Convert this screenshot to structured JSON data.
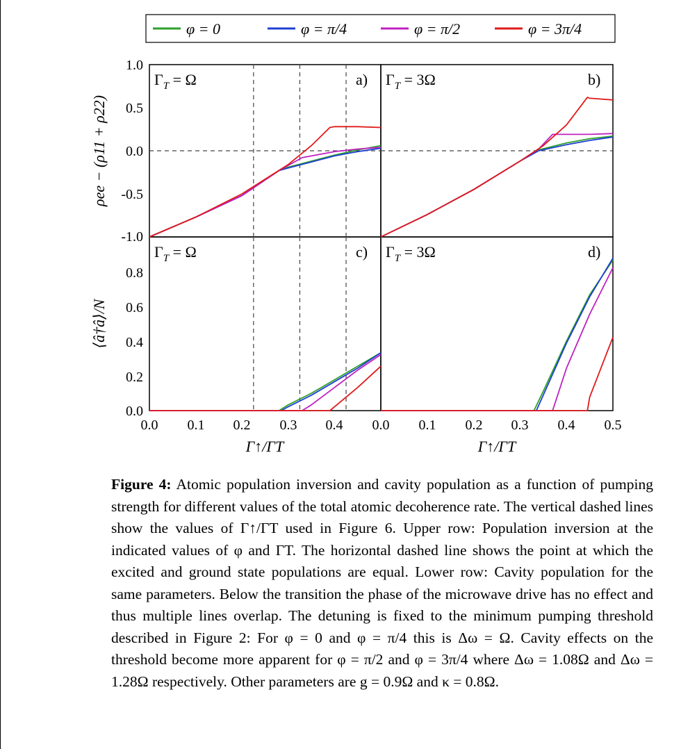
{
  "legend": {
    "entries": [
      "φ = 0",
      "φ = π/4",
      "φ = π/2",
      "φ = 3π/4"
    ]
  },
  "panels": [
    {
      "id": "a",
      "label": "a)",
      "condition": "Γ",
      "condition_sub": "T",
      "condition_rhs": " = Ω"
    },
    {
      "id": "b",
      "label": "b)",
      "condition": "Γ",
      "condition_sub": "T",
      "condition_rhs": " = 3Ω"
    },
    {
      "id": "c",
      "label": "c)",
      "condition": "Γ",
      "condition_sub": "T",
      "condition_rhs": " = Ω"
    },
    {
      "id": "d",
      "label": "d)",
      "condition": "Γ",
      "condition_sub": "T",
      "condition_rhs": " = 3Ω"
    }
  ],
  "axes": {
    "top_ylabel": "ρee − (ρ11 + ρ22)",
    "bottom_ylabel": "⟨â†â⟩/N",
    "xlabel": "Γ↑/ΓT",
    "top_yticks": [
      "1.0",
      "0.5",
      "0.0",
      "-0.5",
      "-1.0"
    ],
    "bottom_yticks": [
      "0.8",
      "0.6",
      "0.4",
      "0.2",
      "0.0"
    ],
    "xticks_left": [
      "0.0",
      "0.1",
      "0.2",
      "0.3",
      "0.4",
      "0.0"
    ],
    "xticks_right": [
      "0.1",
      "0.2",
      "0.3",
      "0.4",
      "0.5"
    ]
  },
  "chart_data": [
    {
      "type": "line",
      "panel": "a",
      "xlim": [
        0,
        0.5
      ],
      "ylim": [
        -1.0,
        1.0
      ],
      "hlines": [
        0.0
      ],
      "vlines": [
        0.225,
        0.325,
        0.425
      ],
      "series": [
        {
          "name": "φ = 0",
          "color": "#2ca02c",
          "x": [
            0,
            0.1,
            0.2,
            0.28,
            0.3,
            0.35,
            0.4,
            0.45,
            0.5
          ],
          "y": [
            -1.0,
            -0.77,
            -0.52,
            -0.23,
            -0.19,
            -0.12,
            -0.05,
            0.01,
            0.06
          ]
        },
        {
          "name": "φ = π/4",
          "color": "#1f3fd0",
          "x": [
            0,
            0.1,
            0.2,
            0.28,
            0.3,
            0.35,
            0.4,
            0.45,
            0.5
          ],
          "y": [
            -1.0,
            -0.77,
            -0.52,
            -0.23,
            -0.2,
            -0.13,
            -0.06,
            -0.01,
            0.03
          ]
        },
        {
          "name": "φ = π/2",
          "color": "#c020c0",
          "x": [
            0,
            0.1,
            0.2,
            0.28,
            0.3,
            0.33,
            0.4,
            0.45,
            0.5
          ],
          "y": [
            -1.0,
            -0.77,
            -0.52,
            -0.23,
            -0.17,
            -0.08,
            -0.01,
            0.02,
            0.04
          ]
        },
        {
          "name": "φ = 3π/4",
          "color": "#e01a1a",
          "x": [
            0,
            0.1,
            0.2,
            0.3,
            0.35,
            0.39,
            0.4,
            0.45,
            0.5
          ],
          "y": [
            -1.0,
            -0.77,
            -0.5,
            -0.16,
            0.06,
            0.27,
            0.28,
            0.28,
            0.27
          ]
        }
      ]
    },
    {
      "type": "line",
      "panel": "b",
      "xlim": [
        0,
        0.5
      ],
      "ylim": [
        -1.0,
        1.0
      ],
      "hlines": [
        0.0
      ],
      "series": [
        {
          "name": "φ = 0",
          "color": "#2ca02c",
          "x": [
            0,
            0.1,
            0.2,
            0.3,
            0.34,
            0.4,
            0.45,
            0.5
          ],
          "y": [
            -1.0,
            -0.74,
            -0.45,
            -0.12,
            0.01,
            0.09,
            0.14,
            0.17
          ]
        },
        {
          "name": "φ = π/4",
          "color": "#1f3fd0",
          "x": [
            0,
            0.1,
            0.2,
            0.3,
            0.34,
            0.4,
            0.45,
            0.5
          ],
          "y": [
            -1.0,
            -0.74,
            -0.45,
            -0.12,
            0.0,
            0.07,
            0.12,
            0.16
          ]
        },
        {
          "name": "φ = π/2",
          "color": "#c020c0",
          "x": [
            0,
            0.1,
            0.2,
            0.3,
            0.34,
            0.37,
            0.4,
            0.45,
            0.5
          ],
          "y": [
            -1.0,
            -0.74,
            -0.45,
            -0.12,
            0.02,
            0.19,
            0.19,
            0.19,
            0.2
          ]
        },
        {
          "name": "φ = 3π/4",
          "color": "#e01a1a",
          "x": [
            0,
            0.1,
            0.2,
            0.3,
            0.35,
            0.4,
            0.445,
            0.45,
            0.5
          ],
          "y": [
            -1.0,
            -0.74,
            -0.45,
            -0.12,
            0.06,
            0.3,
            0.62,
            0.61,
            0.59
          ]
        }
      ]
    },
    {
      "type": "line",
      "panel": "c",
      "xlim": [
        0,
        0.5
      ],
      "ylim": [
        0,
        0.9
      ],
      "vlines": [
        0.225,
        0.325,
        0.425
      ],
      "series": [
        {
          "name": "φ = 0",
          "color": "#2ca02c",
          "x": [
            0,
            0.28,
            0.3,
            0.35,
            0.4,
            0.45,
            0.5
          ],
          "y": [
            0,
            0,
            0.03,
            0.09,
            0.16,
            0.23,
            0.3
          ]
        },
        {
          "name": "φ = π/4",
          "color": "#1f3fd0",
          "x": [
            0,
            0.285,
            0.3,
            0.35,
            0.4,
            0.45,
            0.5
          ],
          "y": [
            0,
            0,
            0.02,
            0.08,
            0.15,
            0.22,
            0.3
          ]
        },
        {
          "name": "φ = π/2",
          "color": "#c020c0",
          "x": [
            0,
            0.33,
            0.35,
            0.4,
            0.45,
            0.5
          ],
          "y": [
            0,
            0,
            0.03,
            0.12,
            0.21,
            0.29
          ]
        },
        {
          "name": "φ = 3π/4",
          "color": "#e01a1a",
          "x": [
            0,
            0.39,
            0.4,
            0.45,
            0.5
          ],
          "y": [
            0,
            0,
            0.02,
            0.12,
            0.23
          ]
        }
      ]
    },
    {
      "type": "line",
      "panel": "d",
      "xlim": [
        0,
        0.5
      ],
      "ylim": [
        0,
        0.9
      ],
      "series": [
        {
          "name": "φ = 0",
          "color": "#2ca02c",
          "x": [
            0,
            0.33,
            0.35,
            0.4,
            0.45,
            0.5
          ],
          "y": [
            0,
            0,
            0.1,
            0.36,
            0.6,
            0.78
          ]
        },
        {
          "name": "φ = π/4",
          "color": "#1f3fd0",
          "x": [
            0,
            0.335,
            0.35,
            0.4,
            0.45,
            0.5
          ],
          "y": [
            0,
            0,
            0.08,
            0.35,
            0.59,
            0.79
          ]
        },
        {
          "name": "φ = π/2",
          "color": "#c020c0",
          "x": [
            0,
            0.37,
            0.4,
            0.45,
            0.5
          ],
          "y": [
            0,
            0,
            0.22,
            0.5,
            0.74
          ]
        },
        {
          "name": "φ = 3π/4",
          "color": "#e01a1a",
          "x": [
            0,
            0.445,
            0.45,
            0.5
          ],
          "y": [
            0,
            0,
            0.07,
            0.38
          ]
        }
      ]
    }
  ],
  "caption": {
    "label": "Figure 4:",
    "text": "Atomic population inversion and cavity population as a function of pumping strength for different values of the total atomic decoherence rate. The vertical dashed lines show the values of Γ↑/ΓT used in Figure 6. Upper row: Population inversion at the indicated values of φ and ΓT. The horizontal dashed line shows the point at which the excited and ground state populations are equal. Lower row: Cavity population for the same parameters. Below the transition the phase of the microwave drive has no effect and thus multiple lines overlap. The detuning is fixed to the minimum pumping threshold described in Figure 2: For φ = 0 and φ = π/4 this is Δω = Ω. Cavity effects on the threshold become more apparent for φ = π/2 and φ = 3π/4 where Δω = 1.08Ω and Δω = 1.28Ω respectively. Other parameters are g = 0.9Ω and κ = 0.8Ω."
  }
}
